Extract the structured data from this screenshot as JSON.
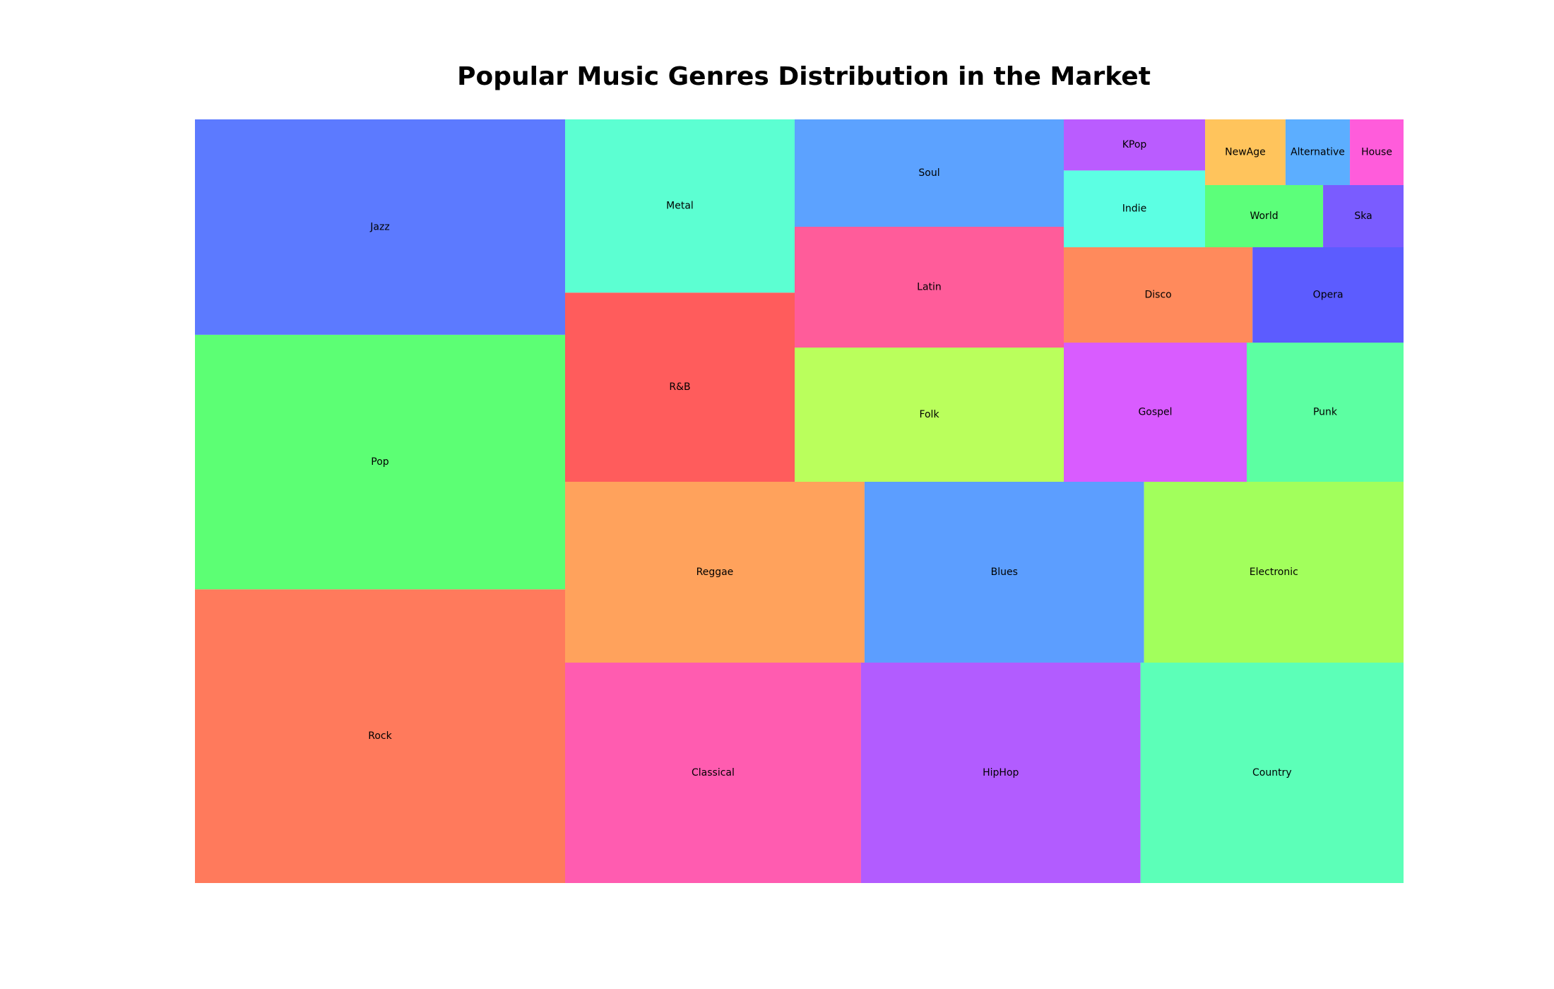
{
  "chart_data": {
    "type": "treemap",
    "title": "Popular Music Genres Distribution in the Market",
    "items": [
      {
        "label": "Rock",
        "value": 450,
        "color": "#FF7A5C"
      },
      {
        "label": "Pop",
        "value": 390,
        "color": "#5CFF74"
      },
      {
        "label": "Jazz",
        "value": 330,
        "color": "#5C7AFF"
      },
      {
        "label": "Classical",
        "value": 270,
        "color": "#FF5CB0"
      },
      {
        "label": "HipHop",
        "value": 255,
        "color": "#B25CFF"
      },
      {
        "label": "Country",
        "value": 240,
        "color": "#5CFFB8"
      },
      {
        "label": "Reggae",
        "value": 225,
        "color": "#FFA25C"
      },
      {
        "label": "Blues",
        "value": 210,
        "color": "#5C9EFF"
      },
      {
        "label": "Electronic",
        "value": 195,
        "color": "#A2FF5C"
      },
      {
        "label": "Metal",
        "value": 165,
        "color": "#5CFFD2"
      },
      {
        "label": "R&B",
        "value": 180,
        "color": "#FF5C5C"
      },
      {
        "label": "Soul",
        "value": 120,
        "color": "#5CA2FF"
      },
      {
        "label": "Latin",
        "value": 135,
        "color": "#FF5C9A"
      },
      {
        "label": "Folk",
        "value": 150,
        "color": "#BAFF5C"
      },
      {
        "label": "KPop",
        "value": 30,
        "color": "#BA5CFF"
      },
      {
        "label": "Indie",
        "value": 45,
        "color": "#5CFFE3"
      },
      {
        "label": "NewAge",
        "value": 15,
        "color": "#FFC45C"
      },
      {
        "label": "Alternative",
        "value": 12,
        "color": "#5CAEFF"
      },
      {
        "label": "House",
        "value": 10,
        "color": "#FF5CDB"
      },
      {
        "label": "World",
        "value": 22,
        "color": "#5CFF7A"
      },
      {
        "label": "Ska",
        "value": 15,
        "color": "#7A5CFF"
      },
      {
        "label": "Disco",
        "value": 75,
        "color": "#FF8A5C"
      },
      {
        "label": "Opera",
        "value": 60,
        "color": "#5C5CFF"
      },
      {
        "label": "Gospel",
        "value": 105,
        "color": "#D95CFF"
      },
      {
        "label": "Punk",
        "value": 90,
        "color": "#5CFFA2"
      }
    ]
  }
}
